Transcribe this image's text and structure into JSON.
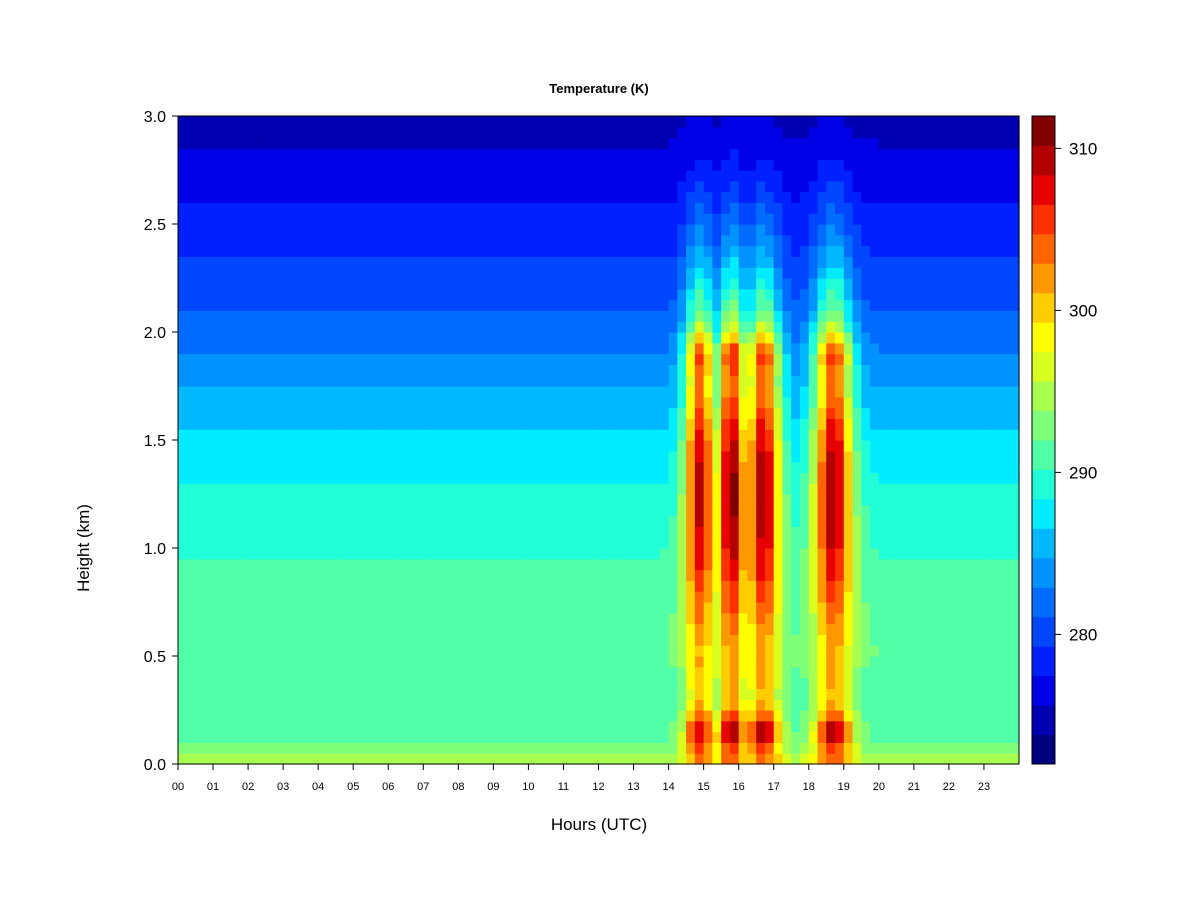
{
  "chart_data": {
    "type": "heatmap",
    "title": "Temperature (K)",
    "xlabel": "Hours (UTC)",
    "ylabel": "Height (km)",
    "x_ticks": [
      "00",
      "01",
      "02",
      "03",
      "04",
      "05",
      "06",
      "07",
      "08",
      "09",
      "10",
      "11",
      "12",
      "13",
      "14",
      "15",
      "16",
      "17",
      "18",
      "19",
      "20",
      "21",
      "22",
      "23"
    ],
    "y_ticks": [
      "0.0",
      "0.5",
      "1.0",
      "1.5",
      "2.0",
      "2.5",
      "3.0"
    ],
    "xlim": [
      0,
      24
    ],
    "ylim": [
      0,
      3.0
    ],
    "colorbar": {
      "ticks": [
        "280",
        "290",
        "300",
        "310"
      ],
      "min": 272,
      "max": 312,
      "levels": 20,
      "colors": [
        "#00007f",
        "#0000b2",
        "#0000e6",
        "#0020ff",
        "#0046ff",
        "#006cff",
        "#0092ff",
        "#00b8ff",
        "#00ecff",
        "#20ffd8",
        "#50ffa8",
        "#80ff7a",
        "#a8ff50",
        "#d8ff20",
        "#ffff00",
        "#ffcc00",
        "#ff9800",
        "#ff6400",
        "#ff3000",
        "#e60000",
        "#b20000",
        "#7f0000"
      ]
    },
    "profile_background": [
      {
        "height_km": 0.0,
        "temp_K": 296
      },
      {
        "height_km": 0.1,
        "temp_K": 292
      },
      {
        "height_km": 0.3,
        "temp_K": 290
      },
      {
        "height_km": 0.5,
        "temp_K": 292
      },
      {
        "height_km": 0.8,
        "temp_K": 291
      },
      {
        "height_km": 1.2,
        "temp_K": 289
      },
      {
        "height_km": 1.5,
        "temp_K": 287
      },
      {
        "height_km": 1.8,
        "temp_K": 284
      },
      {
        "height_km": 2.1,
        "temp_K": 281
      },
      {
        "height_km": 2.5,
        "temp_K": 278
      },
      {
        "height_km": 2.8,
        "temp_K": 276
      },
      {
        "height_km": 3.0,
        "temp_K": 275
      }
    ],
    "warm_plumes": [
      {
        "center_hour": 14.9,
        "width_hours": 0.45,
        "peak_temp_K": 309
      },
      {
        "center_hour": 15.8,
        "width_hours": 0.45,
        "peak_temp_K": 311
      },
      {
        "center_hour": 16.7,
        "width_hours": 0.5,
        "peak_temp_K": 310
      },
      {
        "center_hour": 18.7,
        "width_hours": 0.55,
        "peak_temp_K": 310
      }
    ]
  }
}
